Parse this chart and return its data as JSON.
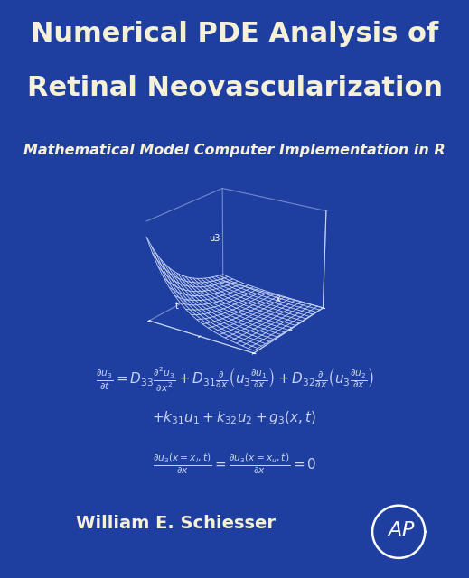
{
  "bg_color": "#1e3fa0",
  "title_line1": "Numerical PDE Analysis of",
  "title_line2": "Retinal Neovascularization",
  "subtitle": "Mathematical Model Computer Implementation in R",
  "title_color": "#f5f0d8",
  "subtitle_color": "#f5f0d8",
  "title_fontsize": 22,
  "subtitle_fontsize": 11.5,
  "author": "William E. Schiesser",
  "eq_color": "#c8d4f0",
  "author_color": "#f5f0d8",
  "author_fontsize": 14,
  "eq_fontsize": 11,
  "surface_color": "#c8d4f8",
  "pane_color": "#1e3fa0",
  "pane_edge_color": "#c8d4f8"
}
